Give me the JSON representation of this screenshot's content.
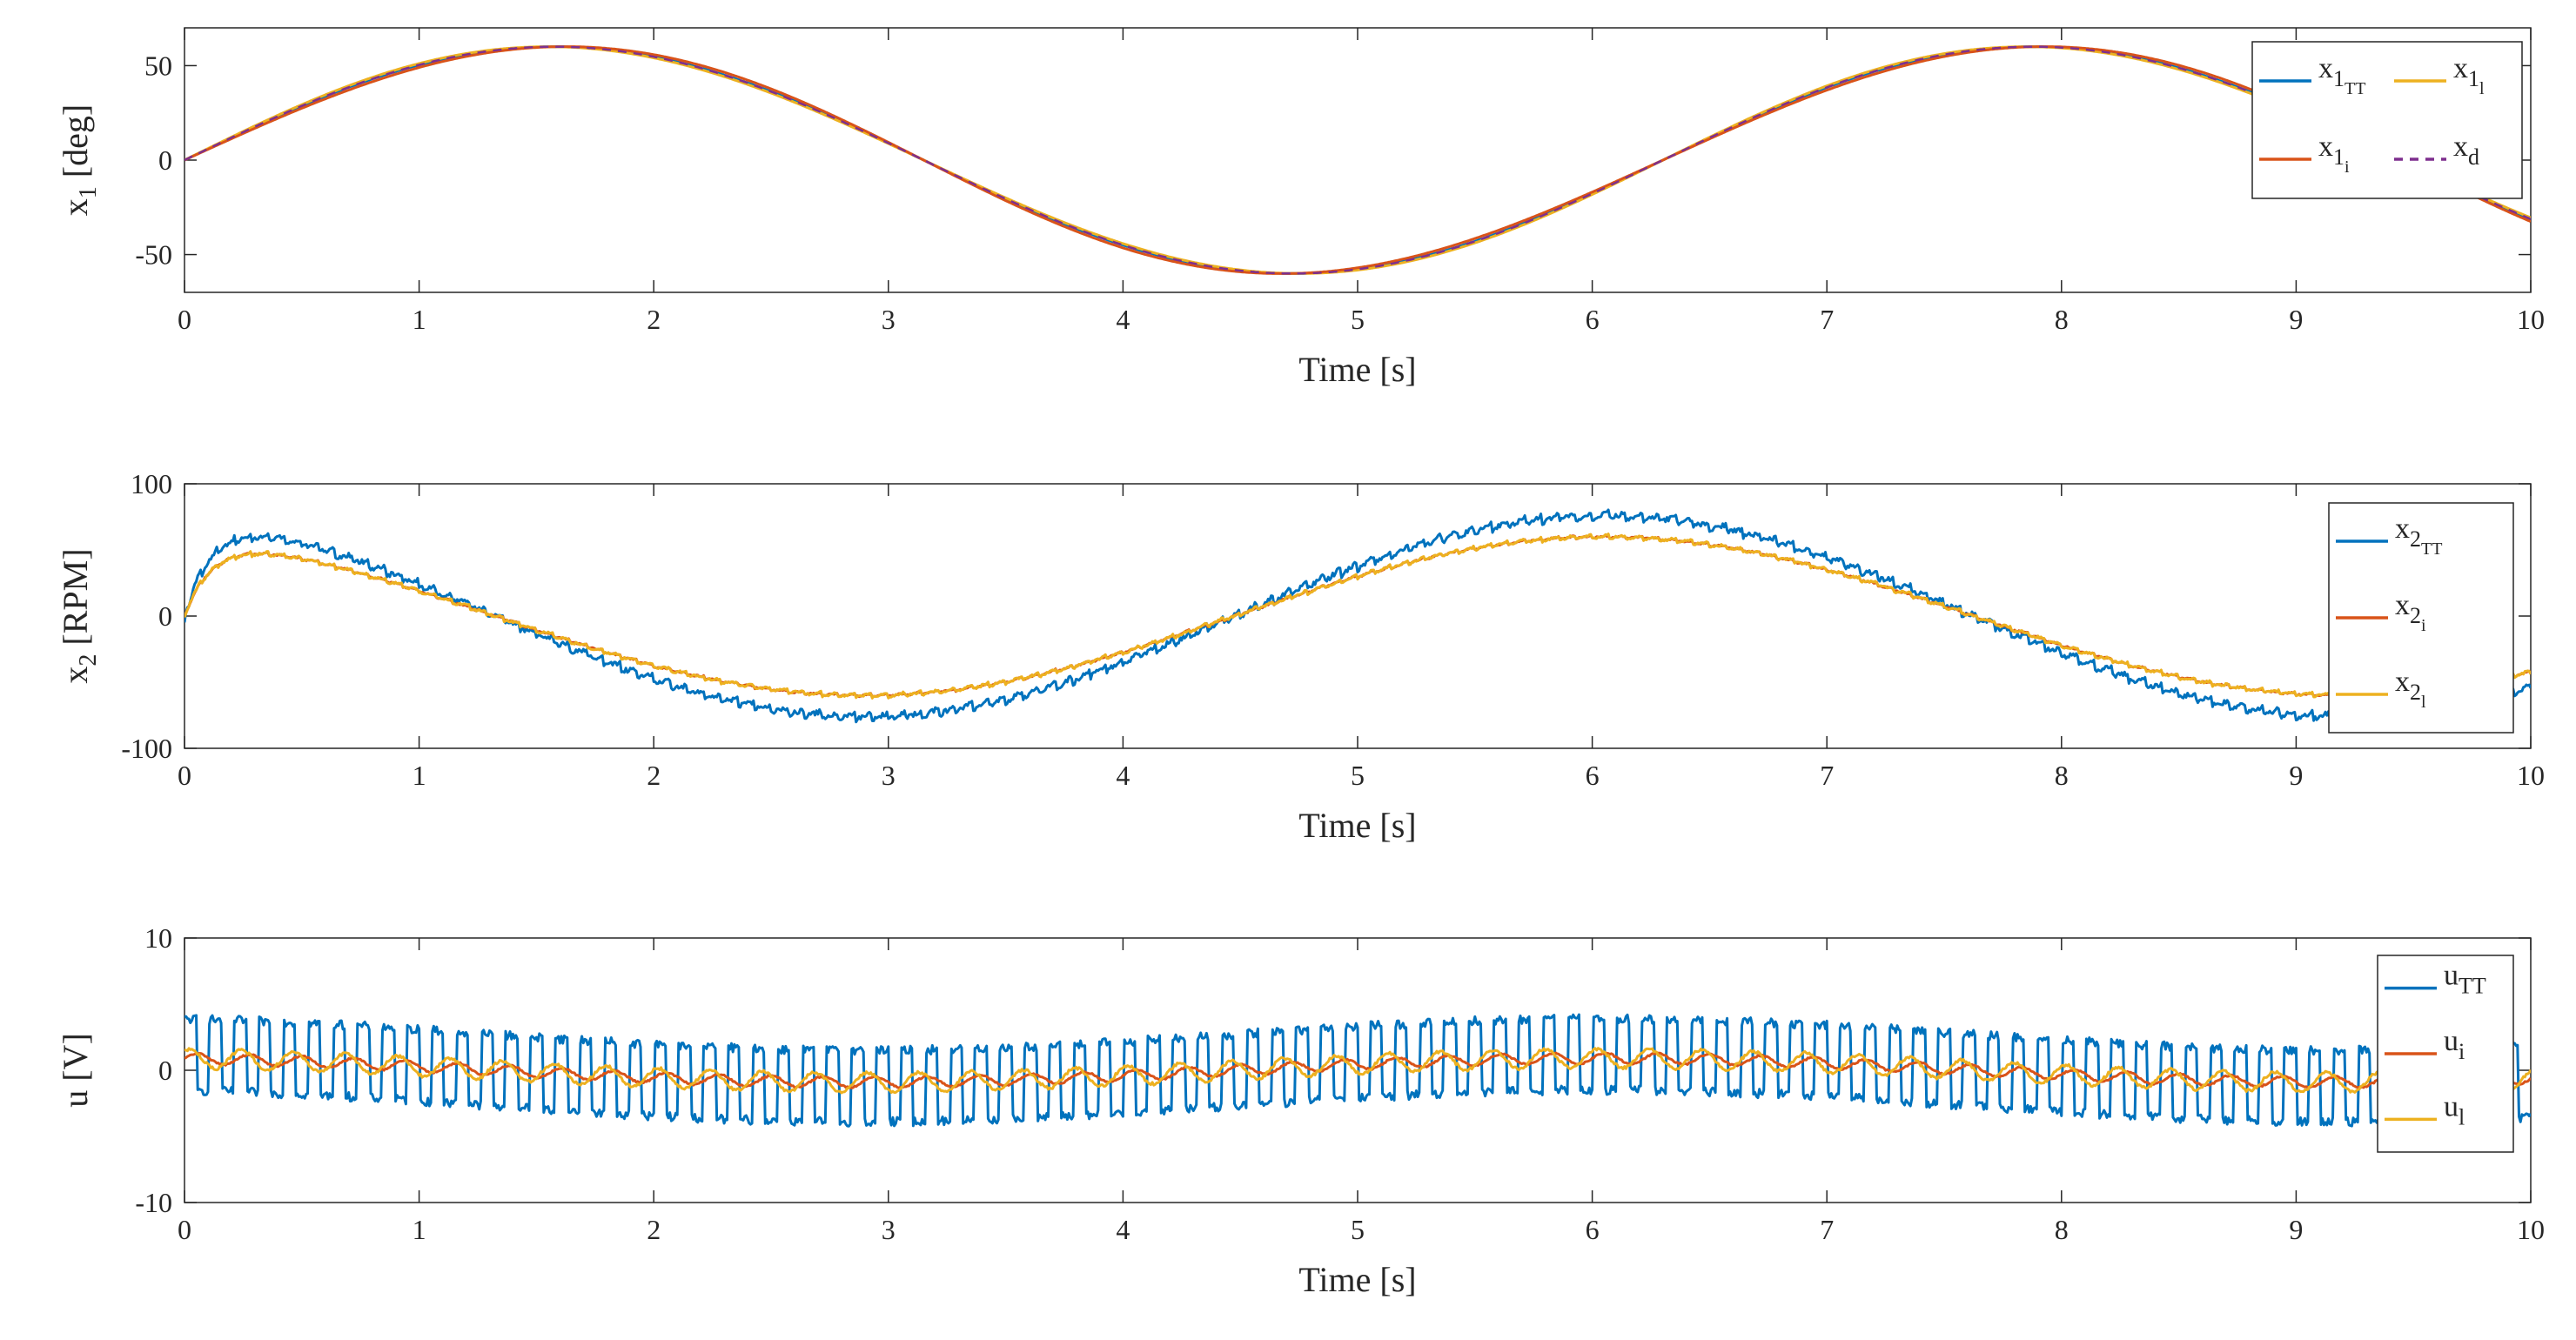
{
  "chart_data": [
    {
      "type": "line",
      "id": "x1",
      "xlabel": "Time [s]",
      "ylabel_main": "x",
      "ylabel_sub": "1",
      "ylabel_unit": " [deg]",
      "xlim": [
        0,
        10
      ],
      "ylim": [
        -70,
        70
      ],
      "xticks": [
        0,
        1,
        2,
        3,
        4,
        5,
        6,
        7,
        8,
        9,
        10
      ],
      "yticks": [
        -50,
        0,
        50
      ],
      "legend_position": "top-right",
      "legend_columns": 2,
      "series": [
        {
          "key": "tt",
          "name": "x",
          "sub": "1",
          "subsub": "TT",
          "color": "#0072BD",
          "dash": false,
          "signal": "sine",
          "amp": 60,
          "freq": 0.1587,
          "offset": 0,
          "ripple": 0
        },
        {
          "key": "l",
          "name": "x",
          "sub": "1",
          "subsub": "l",
          "color": "#EDB120",
          "dash": false,
          "signal": "sine",
          "amp": 60,
          "freq": 0.1587,
          "offset": 0,
          "ripple": 0
        },
        {
          "key": "i",
          "name": "x",
          "sub": "1",
          "subsub": "i",
          "color": "#D95319",
          "dash": false,
          "signal": "sine",
          "amp": 60,
          "freq": 0.1587,
          "offset": 0,
          "ripple": 0
        },
        {
          "key": "d",
          "name": "x",
          "sub": "d",
          "subsub": "",
          "color": "#7E2F8E",
          "dash": true,
          "signal": "sine",
          "amp": 60,
          "freq": 0.1587,
          "offset": 0,
          "ripple": 0
        }
      ]
    },
    {
      "type": "line",
      "id": "x2",
      "xlabel": "Time [s]",
      "ylabel_main": "x",
      "ylabel_sub": "2",
      "ylabel_unit": " [RPM]",
      "xlim": [
        0,
        10
      ],
      "ylim": [
        -100,
        100
      ],
      "xticks": [
        0,
        1,
        2,
        3,
        4,
        5,
        6,
        7,
        8,
        9,
        10
      ],
      "yticks": [
        -100,
        0,
        100
      ],
      "legend_position": "top-right",
      "legend_columns": 1,
      "series": [
        {
          "key": "tt",
          "name": "x",
          "sub": "2",
          "subsub": "TT",
          "color": "#0072BD",
          "dash": false,
          "signal": "cosine",
          "amp": 76,
          "freq": 0.1587,
          "offset": 0,
          "ripple": 6
        },
        {
          "key": "i",
          "name": "x",
          "sub": "2",
          "subsub": "i",
          "color": "#D95319",
          "dash": false,
          "signal": "cosine",
          "amp": 60,
          "freq": 0.1587,
          "offset": 0,
          "ripple": 2
        },
        {
          "key": "l",
          "name": "x",
          "sub": "2",
          "subsub": "l",
          "color": "#EDB120",
          "dash": false,
          "signal": "cosine",
          "amp": 60,
          "freq": 0.1587,
          "offset": 0,
          "ripple": 3
        }
      ]
    },
    {
      "type": "line",
      "id": "u",
      "xlabel": "Time [s]",
      "ylabel_main": "u",
      "ylabel_sub": "",
      "ylabel_unit": " [V]",
      "xlim": [
        0,
        10
      ],
      "ylim": [
        -10,
        10
      ],
      "xticks": [
        0,
        1,
        2,
        3,
        4,
        5,
        6,
        7,
        8,
        9,
        10
      ],
      "yticks": [
        -10,
        0,
        10
      ],
      "legend_position": "right",
      "legend_columns": 1,
      "series": [
        {
          "key": "tt",
          "name": "u",
          "sub": "TT",
          "subsub": "",
          "color": "#0072BD",
          "dash": false,
          "signal": "chatter",
          "amp": 1.2,
          "freq": 0.1587,
          "offset": 0,
          "ripple": 2.7
        },
        {
          "key": "i",
          "name": "u",
          "sub": "i",
          "subsub": "",
          "color": "#D95319",
          "dash": false,
          "signal": "chatter",
          "amp": 0.9,
          "freq": 0.1587,
          "offset": 0,
          "ripple": 0.5
        },
        {
          "key": "l",
          "name": "u",
          "sub": "l",
          "subsub": "",
          "color": "#EDB120",
          "dash": false,
          "signal": "chatter",
          "amp": 0.9,
          "freq": 0.1587,
          "offset": 0,
          "ripple": 0.9
        }
      ]
    }
  ]
}
